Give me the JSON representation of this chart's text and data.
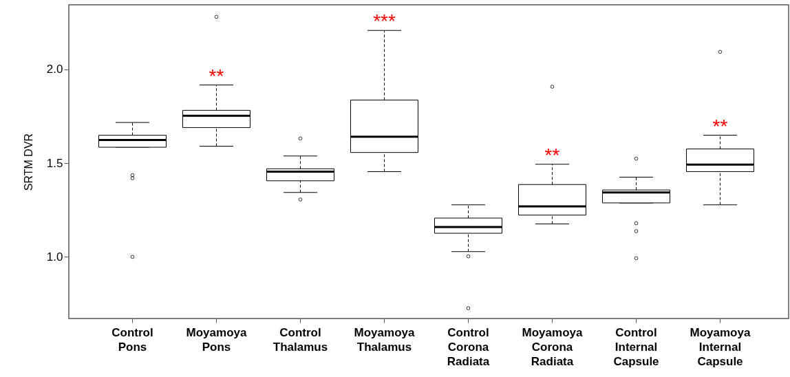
{
  "chart_data": {
    "type": "box",
    "ylabel": "SRTM DVR",
    "categories": [
      "Control\nPons",
      "Moyamoya\nPons",
      "Control\nThalamus",
      "Moyamoya\nThalamus",
      "Control\nCorona\nRadiata",
      "Moyamoya\nCorona\nRadiata",
      "Control\nInternal\nCapsule",
      "Moyamoya\nInternal\nCapsule"
    ],
    "boxes": [
      {
        "low": 1.585,
        "q1": 1.585,
        "median": 1.624,
        "q3": 1.649,
        "high": 1.717,
        "outliers": [
          1.436,
          1.42,
          1.0
        ]
      },
      {
        "low": 1.591,
        "q1": 1.69,
        "median": 1.753,
        "q3": 1.782,
        "high": 1.917,
        "outliers": [
          2.281
        ]
      },
      {
        "low": 1.344,
        "q1": 1.406,
        "median": 1.455,
        "q3": 1.47,
        "high": 1.538,
        "outliers": [
          1.632,
          1.306
        ]
      },
      {
        "low": 1.455,
        "q1": 1.557,
        "median": 1.641,
        "q3": 1.837,
        "high": 2.208
      },
      {
        "low": 1.028,
        "q1": 1.126,
        "median": 1.159,
        "q3": 1.207,
        "high": 1.278,
        "outliers": [
          1.003,
          0.726
        ]
      },
      {
        "low": 1.176,
        "q1": 1.223,
        "median": 1.269,
        "q3": 1.386,
        "high": 1.494,
        "outliers": [
          1.908
        ]
      },
      {
        "low": 1.288,
        "q1": 1.288,
        "median": 1.344,
        "q3": 1.357,
        "high": 1.425,
        "outliers": [
          1.524,
          1.179,
          1.137,
          0.993
        ]
      },
      {
        "low": 1.278,
        "q1": 1.455,
        "median": 1.492,
        "q3": 1.576,
        "high": 1.649,
        "outliers": [
          2.094
        ]
      }
    ],
    "ylim": [
      0.671,
      2.345
    ],
    "yticks": [
      {
        "value": 1,
        "label": "1.0"
      },
      {
        "value": 1.5,
        "label": "1.5"
      },
      {
        "value": 2,
        "label": "2.0"
      }
    ],
    "annotations": [
      "**",
      "***",
      "**",
      "**"
    ]
  }
}
